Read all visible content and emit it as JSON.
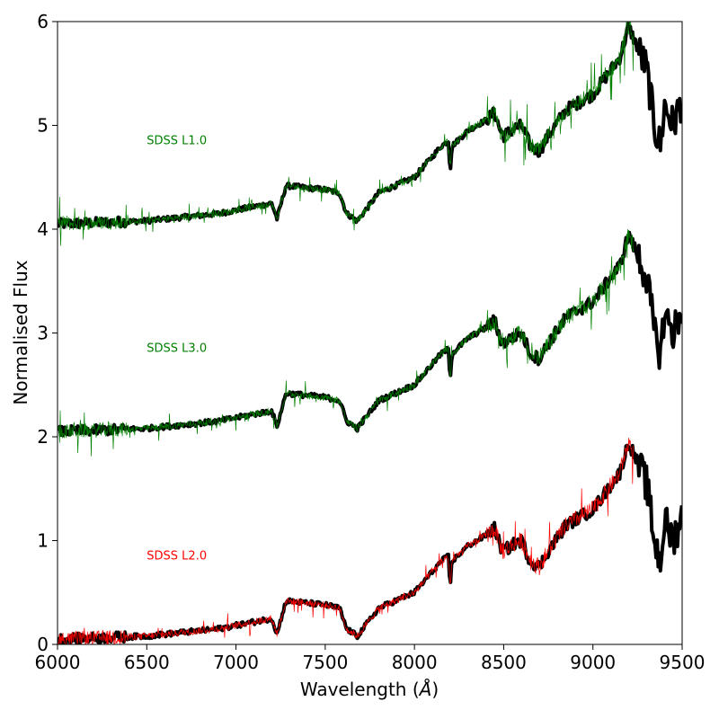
{
  "chart_data": {
    "type": "line",
    "xlabel": "Wavelength (",
    "xlabel_unit": "Å",
    "xlabel_close": ")",
    "ylabel": "Normalised Flux",
    "xlim": [
      6000,
      9500
    ],
    "ylim": [
      0,
      6
    ],
    "xticks": [
      "6000",
      "6500",
      "7000",
      "7500",
      "8000",
      "8500",
      "9000",
      "9500"
    ],
    "yticks": [
      "0",
      "1",
      "2",
      "3",
      "4",
      "5",
      "6"
    ],
    "grid": false,
    "series_colors": {
      "template": "#000000",
      "L1.0": "#008000",
      "L3.0": "#008000",
      "L2.0": "#ff0000"
    },
    "labels": [
      {
        "text": "SDSS L1.0",
        "color": "#008000",
        "x": 6500,
        "y": 4.82
      },
      {
        "text": "SDSS L3.0",
        "color": "#008000",
        "x": 6500,
        "y": 2.82
      },
      {
        "text": "SDSS L2.0",
        "color": "#ff0000",
        "x": 6500,
        "y": 0.82
      }
    ],
    "offsets": [
      4,
      2,
      0
    ],
    "spectrum_shape": {
      "x": [
        6000,
        6500,
        6900,
        7200,
        7230,
        7280,
        7500,
        7580,
        7620,
        7680,
        7800,
        8000,
        8150,
        8190,
        8200,
        8210,
        8300,
        8400,
        8450,
        8480,
        8500,
        8560,
        8600,
        8650,
        8700,
        8750,
        8850,
        9000,
        9150,
        9200,
        9250,
        9300,
        9350,
        9380,
        9400,
        9450,
        9500
      ],
      "y": [
        0.05,
        0.08,
        0.15,
        0.25,
        0.1,
        0.42,
        0.38,
        0.35,
        0.15,
        0.08,
        0.35,
        0.5,
        0.8,
        0.85,
        0.55,
        0.8,
        0.95,
        1.05,
        1.12,
        0.95,
        0.9,
        0.97,
        1.0,
        0.8,
        0.75,
        0.9,
        1.15,
        1.3,
        1.65,
        1.95,
        1.75,
        1.55,
        0.95,
        0.8,
        1.2,
        1.0,
        1.25
      ]
    }
  }
}
